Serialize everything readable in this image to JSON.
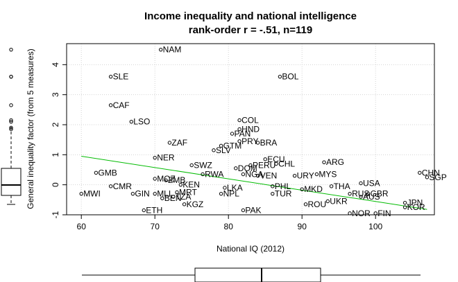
{
  "chart_data": {
    "type": "scatter",
    "title": "Income inequality and national intelligence",
    "subtitle": "rank-order r = -.51, n=119",
    "xlabel": "National IQ (2012)",
    "ylabel": "General inequality factor (from 5 measures)",
    "xlim": [
      58,
      108
    ],
    "ylim": [
      -1.0,
      4.7
    ],
    "xticks": [
      "60",
      "70",
      "80",
      "90",
      "100"
    ],
    "yticks": [
      "-1",
      "0",
      "1",
      "2",
      "3",
      "4"
    ],
    "grid": true,
    "fit_line": {
      "x": [
        60,
        107
      ],
      "y": [
        0.95,
        -0.82
      ],
      "color": "#00bb00"
    },
    "points": [
      {
        "label": "NAM",
        "x": 70.8,
        "y": 4.5
      },
      {
        "label": "SLE",
        "x": 64,
        "y": 3.6
      },
      {
        "label": "BOL",
        "x": 87,
        "y": 3.6
      },
      {
        "label": "CAF",
        "x": 64,
        "y": 2.65
      },
      {
        "label": "COL",
        "x": 81.5,
        "y": 2.15
      },
      {
        "label": "HND",
        "x": 81.5,
        "y": 1.85
      },
      {
        "label": "LSO",
        "x": 66.8,
        "y": 2.1
      },
      {
        "label": "PAN",
        "x": 80.5,
        "y": 1.7
      },
      {
        "label": "PRY",
        "x": 81.5,
        "y": 1.45
      },
      {
        "label": "BRA",
        "x": 84,
        "y": 1.4
      },
      {
        "label": "ZAF",
        "x": 72,
        "y": 1.4
      },
      {
        "label": "GTM",
        "x": 79,
        "y": 1.3
      },
      {
        "label": "SLV",
        "x": 78,
        "y": 1.15
      },
      {
        "label": "ECU",
        "x": 85,
        "y": 0.85
      },
      {
        "label": "NER",
        "x": 70,
        "y": 0.9
      },
      {
        "label": "CHL",
        "x": 86.5,
        "y": 0.7
      },
      {
        "label": "ARG",
        "x": 93,
        "y": 0.75
      },
      {
        "label": "PERU",
        "x": 83,
        "y": 0.65
      },
      {
        "label": "DOM",
        "x": 81,
        "y": 0.55
      },
      {
        "label": "SWZ",
        "x": 75,
        "y": 0.65
      },
      {
        "label": "CHN",
        "x": 106,
        "y": 0.4
      },
      {
        "label": "SGP",
        "x": 107,
        "y": 0.25
      },
      {
        "label": "GMB",
        "x": 62,
        "y": 0.4
      },
      {
        "label": "RWA",
        "x": 76.5,
        "y": 0.35
      },
      {
        "label": "NGA",
        "x": 82,
        "y": 0.35
      },
      {
        "label": "VEN",
        "x": 84,
        "y": 0.3
      },
      {
        "label": "URY",
        "x": 89,
        "y": 0.3
      },
      {
        "label": "MYS",
        "x": 92,
        "y": 0.35
      },
      {
        "label": "MOZ",
        "x": 70,
        "y": 0.2
      },
      {
        "label": "ZMB",
        "x": 71.5,
        "y": 0.15
      },
      {
        "label": "KEN",
        "x": 73.5,
        "y": 0.0
      },
      {
        "label": "USA",
        "x": 98,
        "y": 0.05
      },
      {
        "label": "THA",
        "x": 94,
        "y": -0.05
      },
      {
        "label": "MKD",
        "x": 90,
        "y": -0.15
      },
      {
        "label": "CMR",
        "x": 64,
        "y": -0.05
      },
      {
        "label": "LKA",
        "x": 79.5,
        "y": -0.1
      },
      {
        "label": "PHL",
        "x": 86,
        "y": -0.05
      },
      {
        "label": "MWI",
        "x": 60,
        "y": -0.3
      },
      {
        "label": "GIN",
        "x": 67,
        "y": -0.3
      },
      {
        "label": "MLI",
        "x": 70,
        "y": -0.3
      },
      {
        "label": "MRT",
        "x": 73,
        "y": -0.25
      },
      {
        "label": "NPL",
        "x": 79,
        "y": -0.3
      },
      {
        "label": "BEN",
        "x": 71,
        "y": -0.45
      },
      {
        "label": "TZA",
        "x": 72.5,
        "y": -0.4
      },
      {
        "label": "KGZ",
        "x": 74,
        "y": -0.65
      },
      {
        "label": "ETH",
        "x": 68.5,
        "y": -0.85
      },
      {
        "label": "TUR",
        "x": 86,
        "y": -0.3
      },
      {
        "label": "RUS",
        "x": 96.5,
        "y": -0.3
      },
      {
        "label": "GBR",
        "x": 99,
        "y": -0.3
      },
      {
        "label": "AUS",
        "x": 98,
        "y": -0.4
      },
      {
        "label": "UKR",
        "x": 93.5,
        "y": -0.55
      },
      {
        "label": "ROU",
        "x": 90.5,
        "y": -0.65
      },
      {
        "label": "JPN",
        "x": 104,
        "y": -0.6
      },
      {
        "label": "KOR",
        "x": 104,
        "y": -0.75
      },
      {
        "label": "PAK",
        "x": 82,
        "y": -0.85
      },
      {
        "label": "NOR",
        "x": 96.5,
        "y": -0.95
      },
      {
        "label": "FIN",
        "x": 100,
        "y": -0.95
      }
    ]
  }
}
